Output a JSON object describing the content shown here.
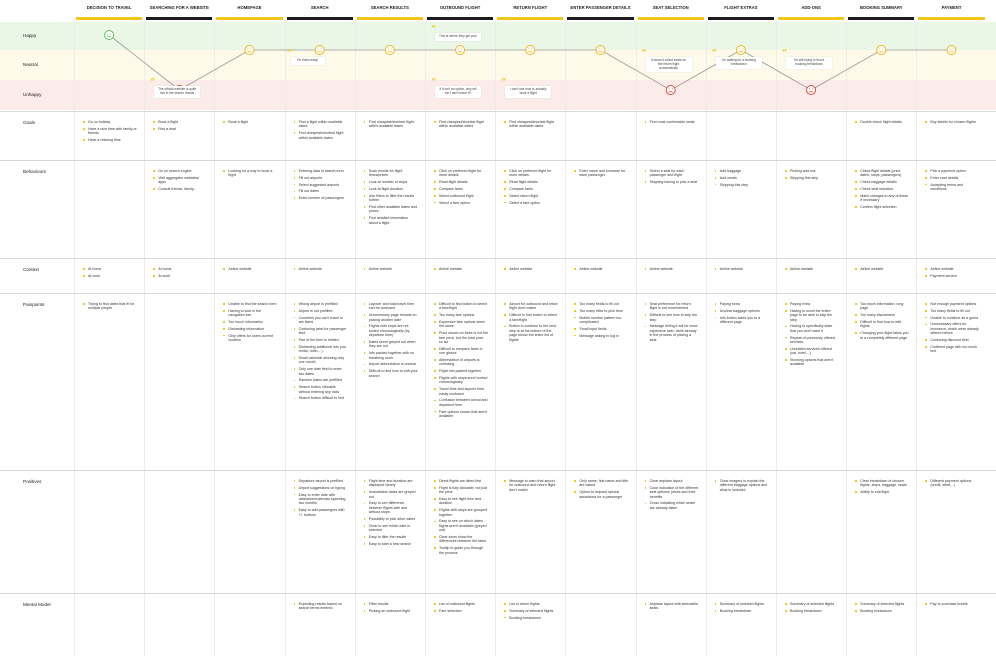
{
  "stages": [
    {
      "label": "DECISION TO TRAVEL"
    },
    {
      "label": "SEARCHING FOR A WEBSITE"
    },
    {
      "label": "HOMEPAGE"
    },
    {
      "label": "SEARCH"
    },
    {
      "label": "SEARCH RESULTS"
    },
    {
      "label": "OUTBOUND FLIGHT"
    },
    {
      "label": "RETURN FLIGHT"
    },
    {
      "label": "ENTER PASSENGER DETAILS"
    },
    {
      "label": "SEAT SELECTION"
    },
    {
      "label": "FLIGHT EXTRAS"
    },
    {
      "label": "ADD-ONS"
    },
    {
      "label": "BOOKING SUMMARY"
    },
    {
      "label": "PAYMENT"
    }
  ],
  "emotion_levels": {
    "happy": "Happy",
    "neutral": "Neutral",
    "unhappy": "Unhappy"
  },
  "emotions": [
    "happy",
    "unhappy",
    "neutral",
    "neutral",
    "neutral",
    "neutral",
    "neutral",
    "neutral",
    "unhappy",
    "neutral",
    "unhappy",
    "neutral",
    "neutral"
  ],
  "quotes": [
    {
      "stage": 1,
      "text": "The official website is quite low in the search results",
      "level": "unhappy"
    },
    {
      "stage": 3,
      "text": "Oh that's easy!",
      "level": "neutral"
    },
    {
      "stage": 5,
      "text": "This is where they get you!",
      "level": "happy"
    },
    {
      "stage": 5,
      "text": "If it isn't an option, why tell me I can't leave it?",
      "level": "unhappy"
    },
    {
      "stage": 6,
      "text": "I can't see how to actually book a flight",
      "level": "unhappy"
    },
    {
      "stage": 8,
      "text": "It doesn't select seats for the return flight automatically",
      "level": "neutral"
    },
    {
      "stage": 9,
      "text": "I'm waiting for a booking breakdown",
      "level": "neutral"
    },
    {
      "stage": 10,
      "text": "I'm still trying to find a booking breakdown",
      "level": "neutral"
    }
  ],
  "rows": [
    {
      "label": "Goals",
      "cells": [
        [
          "Go on holiday",
          "Have a nice time with family or friends",
          "Have a relaxing time"
        ],
        [
          "Book a flight",
          "Find a deal"
        ],
        [
          "Book a flight"
        ],
        [
          "Find a flight within available dates",
          "Find cheapest/shortest flight within available dates"
        ],
        [
          "Find cheapest/shortest flight within available dates"
        ],
        [
          "Find cheapest/shortest flight within available dates"
        ],
        [
          "Find cheapest/shortest flight within available dates"
        ],
        [],
        [
          "Find most comfortable seats"
        ],
        [],
        [],
        [
          "Double check flight details"
        ],
        [
          "Buy tickets for chosen flights"
        ]
      ]
    },
    {
      "label": "Behaviours",
      "cells": [
        [],
        [
          "Go on search engine",
          "Visit aggregator websites/ apps",
          "Consult friends, family..."
        ],
        [
          "Looking for a way to book a flight"
        ],
        [
          "Entering data in search form",
          "Fill out airports",
          "Select suggested airports",
          "Fill out dates",
          "Enter number of passengers"
        ],
        [
          "Scan results for flight times/prices",
          "Look at number of stops",
          "Look at flight duration",
          "Use filters to filter the results further",
          "Find other available dates and prices",
          "Find detailed information about a flight"
        ],
        [
          "Click on preferred flight for more details",
          "Read flight details",
          "Compare fares",
          "Select outbound flight",
          "Select a fare option"
        ],
        [
          "Click on preferred flight for more details",
          "Read flight details",
          "Compare fares",
          "Select return flight",
          "Select a fare option"
        ],
        [
          "Enter name and surname for each passenger"
        ],
        [
          "Select a seat for each passenger and flight",
          "Skipping having to pick a seat"
        ],
        [
          "Add baggage",
          "Add meals",
          "Skipping this step"
        ],
        [
          "Picking add-ons",
          "Skipping this step"
        ],
        [
          "Check flight details (price, dates, stops, passengers)",
          "Check baggage details",
          "Check seat selection",
          "Make changes to any of these if necessary",
          "Confirm flight selection"
        ],
        [
          "Pick a payment option",
          "Enter card details",
          "Accepting terms and conditions"
        ]
      ]
    },
    {
      "label": "Context",
      "cells": [
        [
          "At home",
          "At work"
        ],
        [
          "At home",
          "At work"
        ],
        [
          "Airline website"
        ],
        [
          "Airline website"
        ],
        [
          "Airline website"
        ],
        [
          "Airline website"
        ],
        [
          "Airline website"
        ],
        [
          "Airline website"
        ],
        [
          "Airline website"
        ],
        [
          "Airline website"
        ],
        [
          "Airline website"
        ],
        [
          "Airline website"
        ],
        [
          "Airline website",
          "Payment service"
        ]
      ]
    },
    {
      "label": "Painpoints",
      "cells": [
        [
          "Trying to find dates that fit for multiple people"
        ],
        [],
        [
          "Unable to find the search form",
          "Having to look in the navigation bar",
          "Too much information",
          "Distracting information",
          "Only offers for users current location"
        ],
        [
          "Wrong airport is prefilled",
          "Airport is not prefilled",
          "Countries you can't travel to are listed",
          "Confusing label for passenger field",
          "Part of the form is hidden",
          "Distracting additional info (car rental, hotel,...)",
          "Small calendar showing only one month",
          "Only one date field to enter two dates",
          "Random dates are prefilled",
          "Search button clickable without entering any data",
          "Search button difficult to find"
        ],
        [
          "Layover and total travel time can be confused",
          "Unnecessary page reloads on picking another date",
          "Flights with stops are not sorted chronologically (by departure time)",
          "Dates seem greyed out when they are not",
          "Info packed together with no breathing room",
          "Airport abbreviation is unclear",
          "Difficult to find how to edit your search"
        ],
        [
          "Difficult to find button to select a fare/flight",
          "Too many fare options",
          "Expensive fare options seem the same",
          "Price shown on fares is not the fare price, but the total price so far",
          "Difficult to compare fares in one glance",
          "Abbreviation of airports is confusing",
          "Flight info packed together",
          "Flights with stops aren't sorted chronologically",
          "Travel time and layover time easily confused",
          "Confusion between arrival and departure time",
          "Fare options shown that aren't available"
        ],
        [
          "Airport for outbound and return flight don't match",
          "Difficult to find button to select a fare/flight",
          "Button to continue to the next step is at the bottom of the page below the entire list of flights"
        ],
        [
          "Too many fields to fill out",
          "Too many titles to pick from",
          "Mobile number pattern too complicated",
          "Small input fields",
          "Message asking to log in"
        ],
        [
          "Seat preference for return flight is not remembered",
          "Difficult to see how to skip the step",
          "Message telling it will be more expensive later, while already in the process of picking a seat"
        ],
        [
          "Paying extra",
          "Unclear baggage options",
          "Info button takes you to a different page"
        ],
        [
          "Paying extra",
          "Having to scroll the entire page to be able to skip the step",
          "Having to specifically state that you don't want it",
          "Repeat of previously offered services",
          "Unrelated services offered (car, hotel,...)",
          "Showing options that aren't available"
        ],
        [
          "Too much information, long page",
          "Too many disclaimers",
          "Difficult to find how to edit flights",
          "Changing your flight takes you to a completely different page"
        ],
        [
          "Not enough payment options",
          "Too many fields to fill out",
          "Unable to continue as a guest",
          "Unnecessary offers for insurance, which were already offered before",
          "Confusing discount field",
          "Cluttered page with too much text"
        ]
      ]
    },
    {
      "label": "Positives",
      "cells": [
        [],
        [],
        [],
        [
          "Departure airport is prefilled",
          "Airport suggestions on typing",
          "Easy to enter date with datepicker/calendar spanning two months",
          "Easy to add passengers with +/- buttons"
        ],
        [
          "Flight time and duration are displayed clearly",
          "Unavailable dates are greyed out",
          "Easy to see difference between flights with and without stops",
          "Possibility to pick other dates",
          "Clear to see which date is selected",
          "Easy to filter the results",
          "Easy to start a new search"
        ],
        [
          "Direct flights are listed first",
          "Flight is fully clickable, not just the price",
          "Easy to see flight time and duration",
          "Flights with stops are grouped together",
          "Easy to see on which dates flights aren't available (greyed out)",
          "Clear icons show the differences between the fares",
          "Tooltip to guide you through the process"
        ],
        [
          "Message to warn that airport for outbound and return flight don't match"
        ],
        [
          "Only name, first name and title are asked",
          "Option to request special assistance for a passenger"
        ],
        [
          "Clear airplane layout",
          "Color indication of the different seat options/ prices and their benefits",
          "Cross indicating which seats are already taken"
        ],
        [
          "Clear imagery to explain the different baggage options and what is included"
        ],
        [],
        [
          "Clear breakdown of chosen flights, stops, baggage, seats",
          "Ability to edit flight"
        ],
        [
          "Different payment options (credit, debit,...)"
        ]
      ]
    },
    {
      "label": "Mental Model",
      "cells": [
        [],
        [],
        [],
        [
          "Expecting results based on search terms entered"
        ],
        [
          "Filter results",
          "Picking an outbound flight"
        ],
        [
          "List of outbound flights",
          "Fare selection"
        ],
        [
          "List of return flights",
          "Summary of selected flights",
          "Booking breakdown"
        ],
        [],
        [
          "Airplane layout with selectable seats"
        ],
        [
          "Summary of selected flights",
          "Booking breakdown"
        ],
        [
          "Summary of selected flights",
          "Booking breakdown"
        ],
        [
          "Summary of selected flights",
          "Booking breakdown"
        ],
        [
          "Pay to purchase tickets"
        ]
      ]
    }
  ]
}
